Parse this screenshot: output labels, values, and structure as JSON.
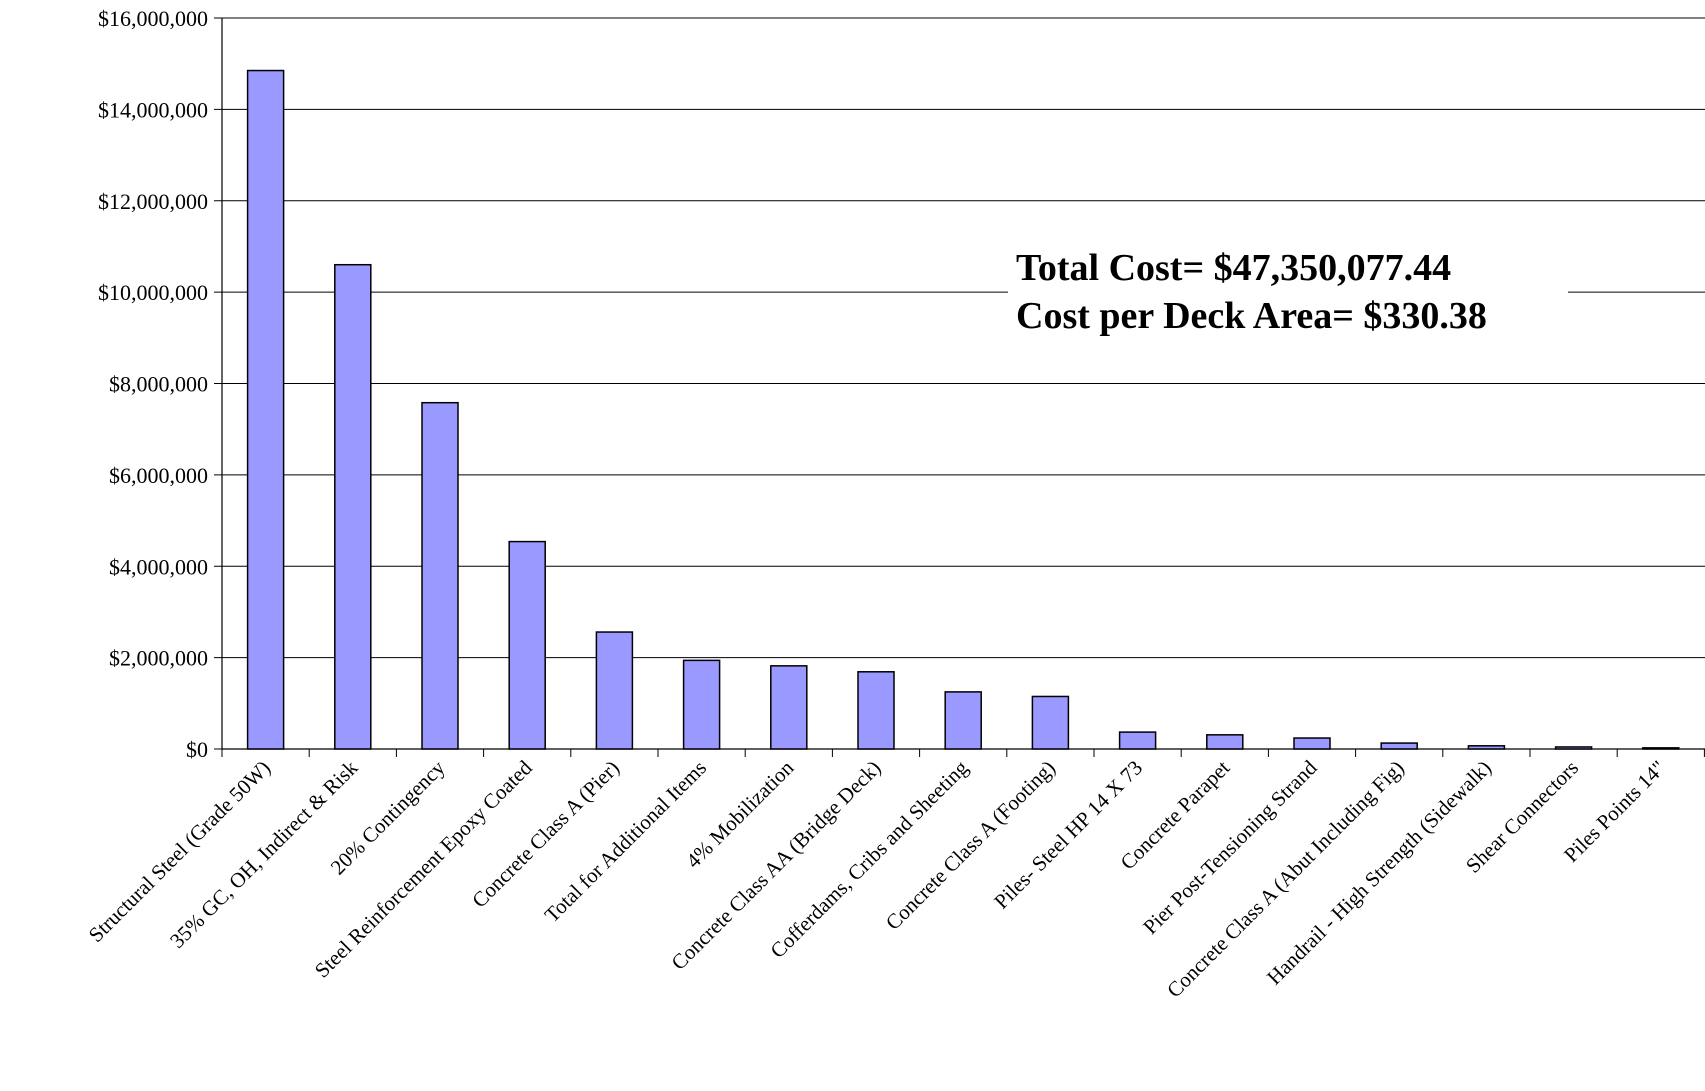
{
  "chart_data": {
    "type": "bar",
    "categories": [
      "Structural Steel (Grade 50W)",
      "35% GC, OH, Indirect & Risk",
      "20% Contingency",
      "Steel Reinforcement Epoxy Coated",
      "Concrete Class A (Pier)",
      "Total for Additional Items",
      "4% Mobilization",
      "Concrete Class AA (Bridge Deck)",
      "Cofferdams, Cribs and Sheeting",
      "Concrete Class A (Footing)",
      "Piles- Steel HP 14 X 73",
      "Concrete Parapet",
      "Pier Post-Tensioning Strand",
      "Concrete Class A (Abut Including Fig)",
      "Handrail - High Strength (Sidewalk)",
      "Shear Connectors",
      "Piles Points 14\""
    ],
    "values": [
      14850000,
      10600000,
      7580000,
      4540000,
      2560000,
      1940000,
      1820000,
      1690000,
      1250000,
      1150000,
      370000,
      310000,
      240000,
      130000,
      70000,
      45000,
      25000
    ],
    "ylim": [
      0,
      16000000
    ],
    "yticks": [
      0,
      2000000,
      4000000,
      6000000,
      8000000,
      10000000,
      12000000,
      14000000,
      16000000
    ],
    "ytick_labels": [
      "$0",
      "$2,000,000",
      "$4,000,000",
      "$6,000,000",
      "$8,000,000",
      "$10,000,000",
      "$12,000,000",
      "$14,000,000",
      "$16,000,000"
    ],
    "bar_color": "#9999ff",
    "grid": true,
    "annotation": {
      "line1": "Total Cost= $47,350,077.44",
      "line2": "Cost per Deck Area= $330.38"
    }
  }
}
